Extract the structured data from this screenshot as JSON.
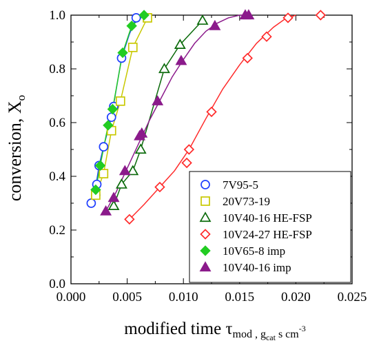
{
  "chart_data": {
    "type": "scatter",
    "title": "",
    "xlabel": {
      "main": "modified time τ",
      "sub": "mod",
      "sep": " , ",
      "unit_g": "g",
      "unit_g_sub": "cat",
      "unit_rest": " s cm",
      "unit_exp": "-3"
    },
    "ylabel": {
      "main": "conversion, X",
      "sub": "o"
    },
    "xlim": [
      0.0,
      0.025
    ],
    "ylim": [
      0.0,
      1.0
    ],
    "x_ticks": [
      "0.000",
      "0.005",
      "0.010",
      "0.015",
      "0.020",
      "0.025"
    ],
    "y_ticks": [
      "0.0",
      "0.2",
      "0.4",
      "0.6",
      "0.8",
      "1.0"
    ],
    "grid": false,
    "legend_position": "bottom-right",
    "series": [
      {
        "name": "7V95-5",
        "marker": "circle",
        "color": "#1f3fff",
        "filled": false,
        "x": [
          0.0018,
          0.0022,
          0.0023,
          0.0025,
          0.0029,
          0.0036,
          0.0038,
          0.0045,
          0.0058
        ],
        "y": [
          0.3,
          0.33,
          0.37,
          0.44,
          0.51,
          0.62,
          0.66,
          0.84,
          0.99
        ],
        "fit": {
          "x": [
            0.0018,
            0.0022,
            0.0025,
            0.0029,
            0.0036,
            0.0045,
            0.0052,
            0.0058
          ],
          "y": [
            0.3,
            0.36,
            0.44,
            0.51,
            0.62,
            0.84,
            0.93,
            0.99
          ]
        }
      },
      {
        "name": "20V73-19",
        "marker": "square",
        "color": "#c8c800",
        "filled": false,
        "x": [
          0.0022,
          0.0029,
          0.0036,
          0.0044,
          0.0055,
          0.0068
        ],
        "y": [
          0.33,
          0.41,
          0.57,
          0.68,
          0.88,
          0.99
        ],
        "fit": {
          "x": [
            0.0022,
            0.0029,
            0.0036,
            0.0044,
            0.0055,
            0.0068
          ],
          "y": [
            0.33,
            0.41,
            0.57,
            0.68,
            0.88,
            0.99
          ]
        }
      },
      {
        "name": "10V40-16 HE-FSP",
        "marker": "triangle",
        "color": "#0a6a0a",
        "filled": false,
        "x": [
          0.0038,
          0.0045,
          0.0055,
          0.0062,
          0.0083,
          0.0097,
          0.0117
        ],
        "y": [
          0.29,
          0.37,
          0.42,
          0.5,
          0.8,
          0.89,
          0.98
        ],
        "fit": {
          "x": [
            0.0038,
            0.0045,
            0.0055,
            0.0062,
            0.0083,
            0.0097,
            0.0117
          ],
          "y": [
            0.29,
            0.37,
            0.42,
            0.5,
            0.8,
            0.89,
            0.98
          ]
        }
      },
      {
        "name": "10V24-27 HE-FSP",
        "marker": "diamond",
        "color": "#ff2a2a",
        "filled": false,
        "x": [
          0.0052,
          0.0079,
          0.0103,
          0.0105,
          0.0125,
          0.0157,
          0.0174,
          0.0193,
          0.0222
        ],
        "y": [
          0.24,
          0.36,
          0.45,
          0.5,
          0.64,
          0.84,
          0.92,
          0.99,
          1.0
        ],
        "fit": {
          "x": [
            0.0052,
            0.0065,
            0.0079,
            0.0092,
            0.0105,
            0.012,
            0.0135,
            0.015,
            0.0165,
            0.018,
            0.019,
            0.02
          ],
          "y": [
            0.24,
            0.295,
            0.36,
            0.42,
            0.5,
            0.615,
            0.725,
            0.815,
            0.895,
            0.955,
            0.985,
            1.0
          ]
        }
      },
      {
        "name": "10V65-8 imp",
        "marker": "diamond",
        "color": "#22cc22",
        "filled": true,
        "x": [
          0.0022,
          0.0026,
          0.0033,
          0.0037,
          0.0046,
          0.0054,
          0.0065
        ],
        "y": [
          0.35,
          0.44,
          0.59,
          0.65,
          0.86,
          0.96,
          1.0
        ],
        "fit": {
          "x": [
            0.0022,
            0.0026,
            0.0033,
            0.0037,
            0.0046,
            0.0054,
            0.0065
          ],
          "y": [
            0.35,
            0.44,
            0.59,
            0.65,
            0.86,
            0.96,
            1.0
          ]
        }
      },
      {
        "name": "10V40-16 imp",
        "marker": "triangle",
        "color": "#8b1a8b",
        "filled": true,
        "x": [
          0.0031,
          0.0038,
          0.0048,
          0.0061,
          0.0063,
          0.0077,
          0.0098,
          0.0128,
          0.0155,
          0.0158
        ],
        "y": [
          0.27,
          0.32,
          0.42,
          0.55,
          0.56,
          0.68,
          0.83,
          0.96,
          1.0,
          1.0
        ],
        "fit": {
          "x": [
            0.0031,
            0.004,
            0.005,
            0.006,
            0.007,
            0.008,
            0.009,
            0.01,
            0.011,
            0.012,
            0.013,
            0.014,
            0.015,
            0.0158
          ],
          "y": [
            0.27,
            0.34,
            0.43,
            0.52,
            0.61,
            0.69,
            0.77,
            0.835,
            0.895,
            0.94,
            0.97,
            0.99,
            1.0,
            1.0
          ]
        }
      }
    ]
  }
}
